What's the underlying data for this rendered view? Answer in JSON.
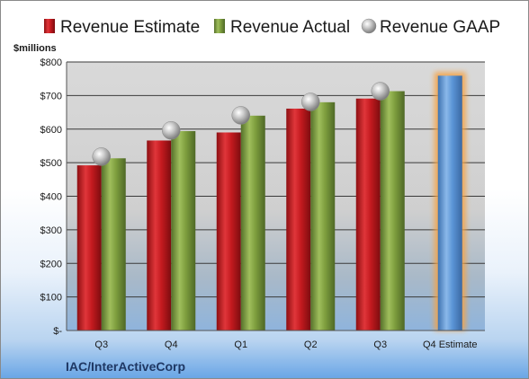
{
  "chart_data": {
    "type": "bar",
    "company": "IAC/InterActiveCorp",
    "unit_label": "$millions",
    "categories": [
      "Q3",
      "Q4",
      "Q1",
      "Q2",
      "Q3",
      "Q4 Estimate"
    ],
    "yticks": [
      "$-",
      "$100",
      "$200",
      "$300",
      "$400",
      "$500",
      "$600",
      "$700",
      "$800"
    ],
    "ylim": [
      0,
      800
    ],
    "grid": true,
    "legend_position": "top",
    "series": [
      {
        "name": "Revenue Estimate",
        "kind": "bar",
        "color": "#c0171c",
        "values": [
          492,
          566,
          590,
          661,
          691,
          null
        ]
      },
      {
        "name": "Revenue Actual",
        "kind": "bar",
        "color": "#7a9a3a",
        "values": [
          513,
          594,
          640,
          680,
          713,
          null
        ]
      },
      {
        "name": "Revenue GAAP",
        "kind": "marker",
        "color": "#b8b8b8",
        "values": [
          518,
          596,
          641,
          681,
          713,
          null
        ]
      },
      {
        "name": "Q4 Estimate",
        "kind": "bar",
        "color": "#5b9bd5",
        "highlight": "#f5a142",
        "values": [
          null,
          null,
          null,
          null,
          null,
          759
        ],
        "in_legend": false
      }
    ]
  }
}
